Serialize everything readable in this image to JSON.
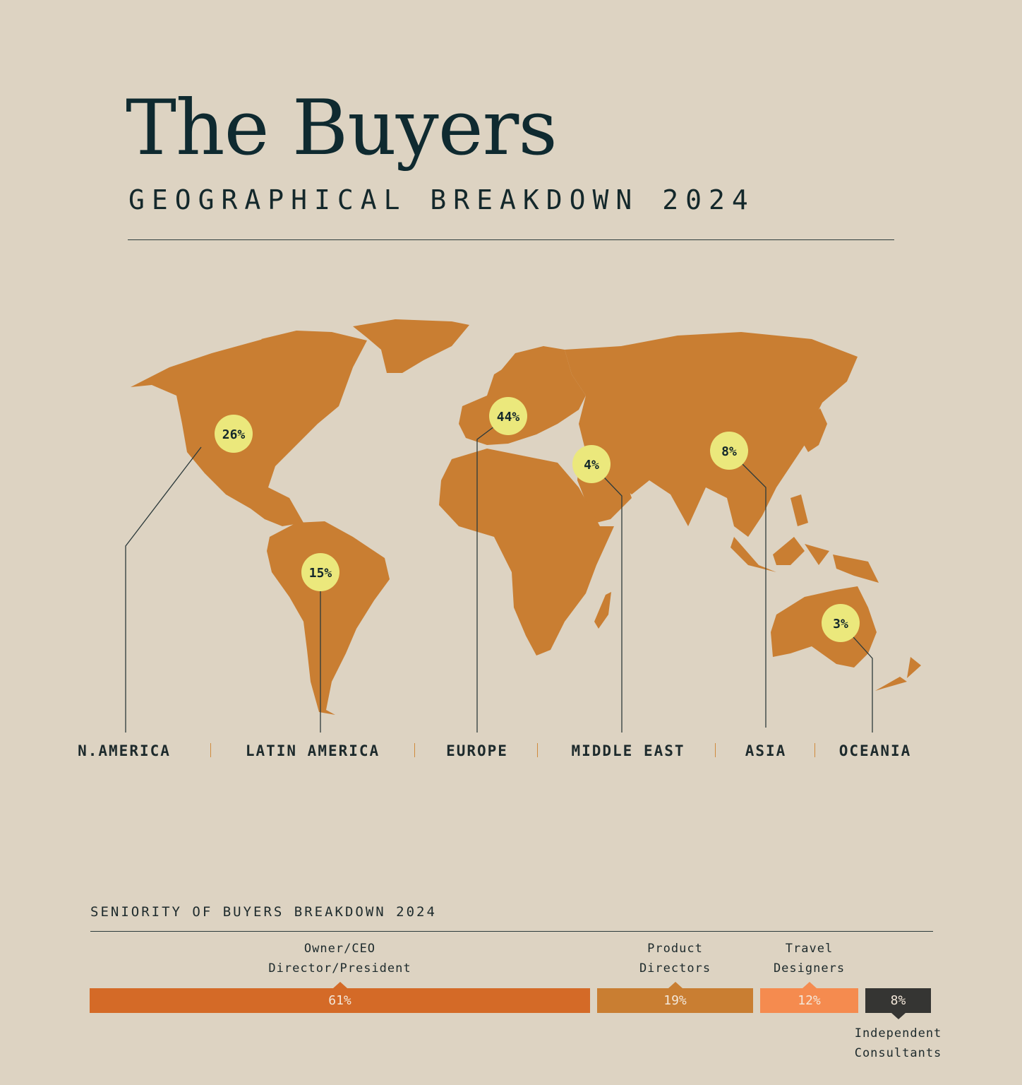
{
  "title": "The Buyers",
  "subtitle": "GEOGRAPHICAL BREAKDOWN 2024",
  "colors": {
    "background": "#ddd3c2",
    "land": "#c97e32",
    "bubble": "#ebe87c",
    "ink": "#14282b"
  },
  "chart_data": [
    {
      "type": "map",
      "title": "GEOGRAPHICAL BREAKDOWN 2024",
      "categories": [
        "N.AMERICA",
        "LATIN AMERICA",
        "EUROPE",
        "MIDDLE EAST",
        "ASIA",
        "OCEANIA"
      ],
      "values": [
        26,
        15,
        44,
        4,
        8,
        3
      ],
      "labels": [
        "26%",
        "15%",
        "44%",
        "4%",
        "8%",
        "3%"
      ],
      "unit": "%"
    },
    {
      "type": "bar",
      "orientation": "stacked-horizontal",
      "title": "SENIORITY OF BUYERS BREAKDOWN 2024",
      "categories": [
        [
          "Owner/CEO",
          "Director/President"
        ],
        [
          "Product",
          "Directors"
        ],
        [
          "Travel",
          "Designers"
        ],
        [
          "Independent",
          "Consultants"
        ]
      ],
      "values": [
        61,
        19,
        12,
        8
      ],
      "labels": [
        "61%",
        "19%",
        "12%",
        "8%"
      ],
      "colors": [
        "#d46a27",
        "#c97e32",
        "#f58b4f",
        "#353533"
      ]
    }
  ]
}
